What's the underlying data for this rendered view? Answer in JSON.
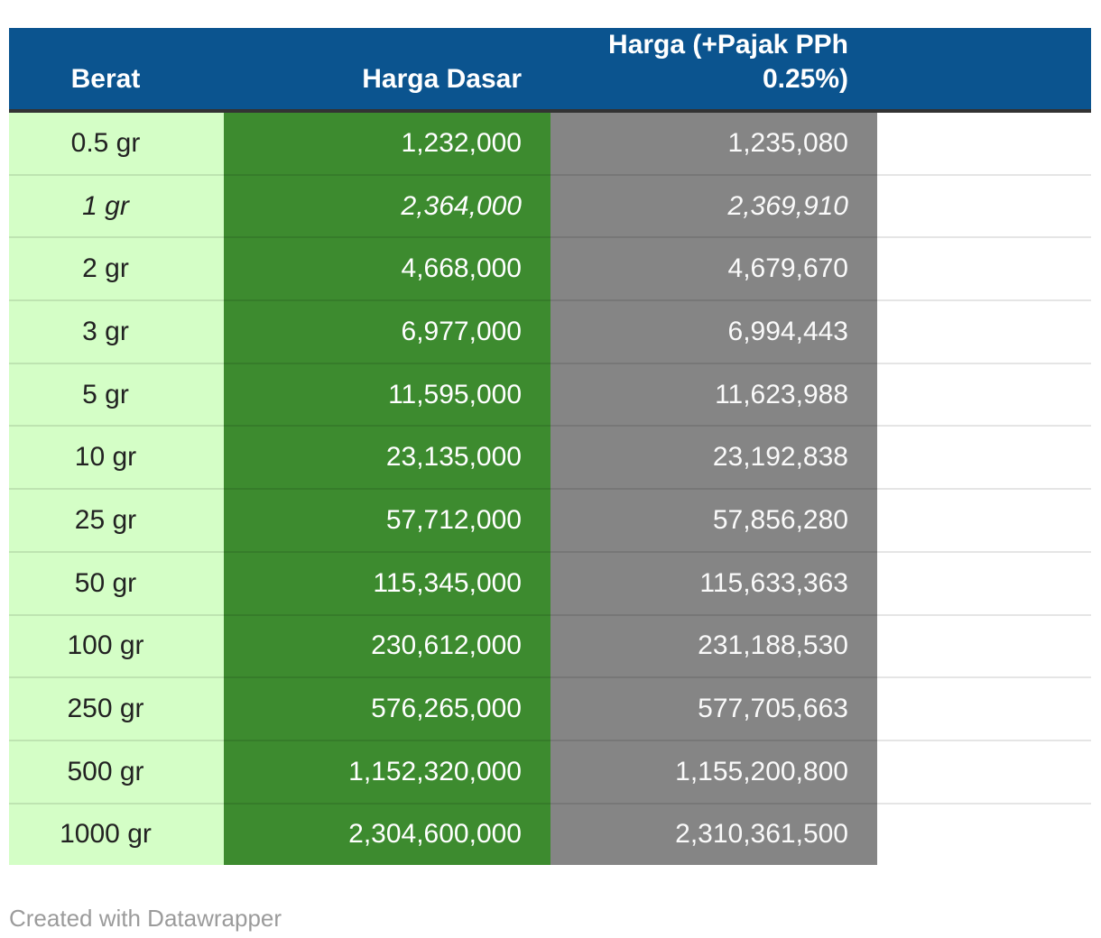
{
  "chart_data": {
    "type": "table",
    "columns": [
      {
        "id": "berat",
        "label": "Berat"
      },
      {
        "id": "harga_dasar",
        "label": "Harga Dasar"
      },
      {
        "id": "harga_pajak",
        "label": "Harga (+Pajak PPh 0.25%)"
      }
    ],
    "rows": [
      {
        "berat": "0.5 gr",
        "harga_dasar": "1,232,000",
        "harga_pajak": "1,235,080",
        "italic": false
      },
      {
        "berat": "1 gr",
        "harga_dasar": "2,364,000",
        "harga_pajak": "2,369,910",
        "italic": true
      },
      {
        "berat": "2 gr",
        "harga_dasar": "4,668,000",
        "harga_pajak": "4,679,670",
        "italic": false
      },
      {
        "berat": "3 gr",
        "harga_dasar": "6,977,000",
        "harga_pajak": "6,994,443",
        "italic": false
      },
      {
        "berat": "5 gr",
        "harga_dasar": "11,595,000",
        "harga_pajak": "11,623,988",
        "italic": false
      },
      {
        "berat": "10 gr",
        "harga_dasar": "23,135,000",
        "harga_pajak": "23,192,838",
        "italic": false
      },
      {
        "berat": "25 gr",
        "harga_dasar": "57,712,000",
        "harga_pajak": "57,856,280",
        "italic": false
      },
      {
        "berat": "50 gr",
        "harga_dasar": "115,345,000",
        "harga_pajak": "115,633,363",
        "italic": false
      },
      {
        "berat": "100 gr",
        "harga_dasar": "230,612,000",
        "harga_pajak": "231,188,530",
        "italic": false
      },
      {
        "berat": "250 gr",
        "harga_dasar": "576,265,000",
        "harga_pajak": "577,705,663",
        "italic": false
      },
      {
        "berat": "500 gr",
        "harga_dasar": "1,152,320,000",
        "harga_pajak": "1,155,200,800",
        "italic": false
      },
      {
        "berat": "1000 gr",
        "harga_dasar": "2,304,600,000",
        "harga_pajak": "2,310,361,500",
        "italic": false
      }
    ],
    "title": "",
    "layout_hints": {
      "header_align": {
        "berat": "center",
        "harga_dasar": "right",
        "harga_pajak": "right"
      },
      "grid": "horizontal-row-dividers"
    }
  },
  "footer": {
    "attribution": "Created with Datawrapper"
  },
  "colors": {
    "header_bg": "#0b548f",
    "header_text": "#ffffff",
    "header_divider": "#333333",
    "col_berat_bg": "#d4fec6",
    "col_berat_text": "#222222",
    "col_dasar_bg": "#3d8b2f",
    "col_pajak_bg": "#858585",
    "value_text": "#ffffff",
    "attribution_text": "#9b9b9b"
  }
}
